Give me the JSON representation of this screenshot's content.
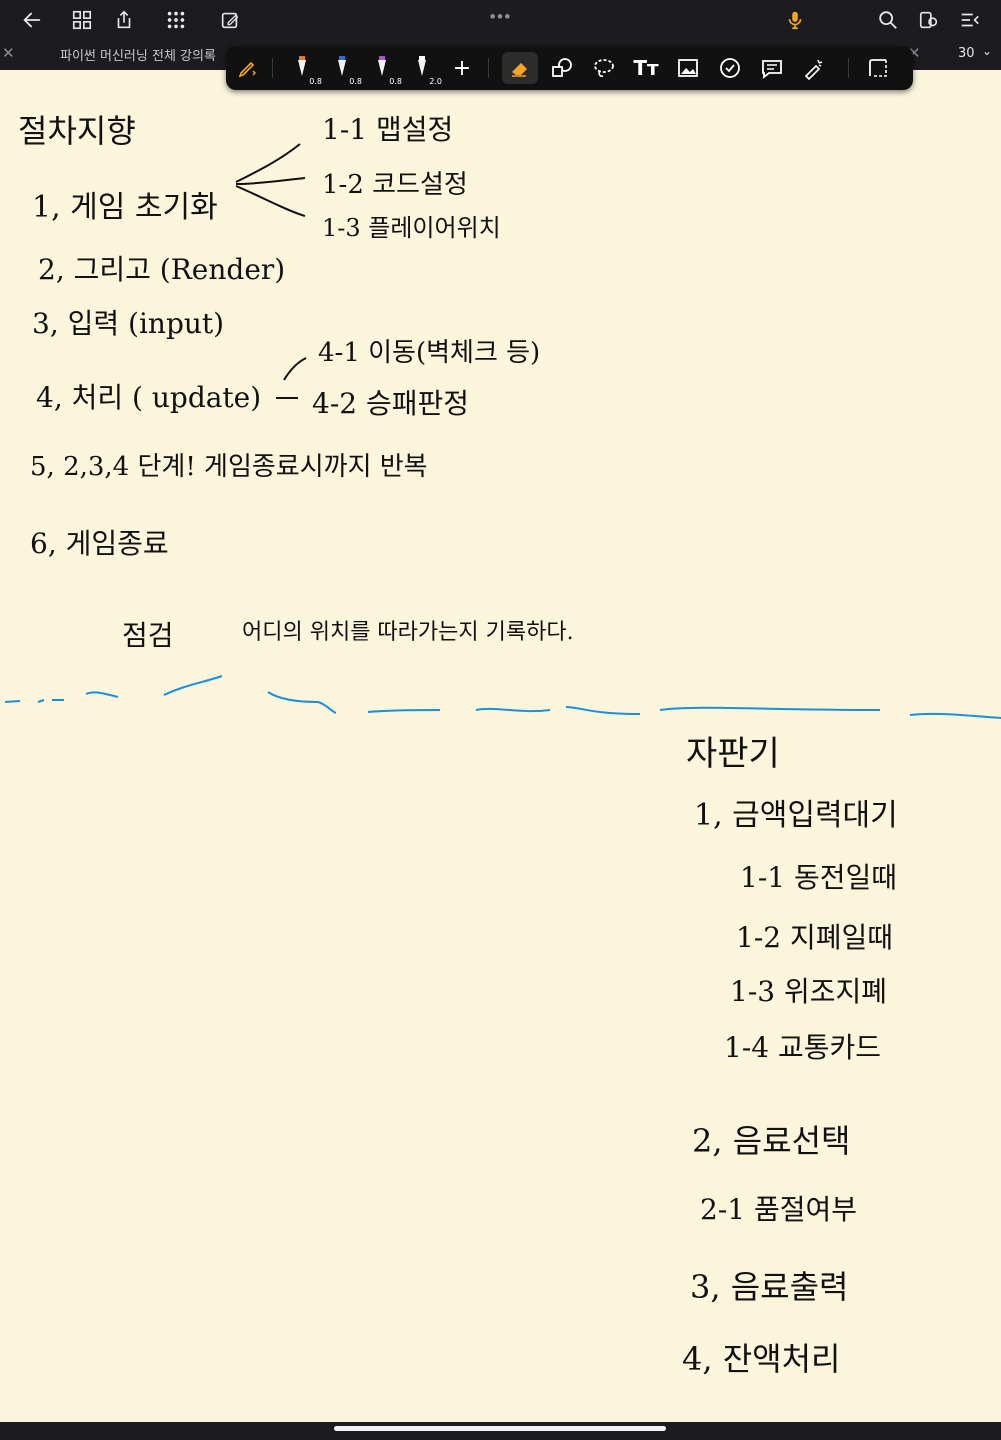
{
  "topbar": {
    "icons": [
      "back-arrow-icon",
      "grid-view-icon",
      "share-icon",
      "apps-icon",
      "edit-document-icon",
      "more-dots-icon",
      "microphone-icon",
      "search-icon",
      "settings-icon",
      "collapse-icon"
    ],
    "accent": "#f5a623"
  },
  "tab": {
    "title": "파이썬 머신러닝 전체 강의록",
    "page_number": "30"
  },
  "toolbar": {
    "pens": [
      {
        "size": "0.8",
        "color": "#e07b2b"
      },
      {
        "size": "0.8",
        "color": "#2f6fe0"
      },
      {
        "size": "0.8",
        "color": "#b14fd8"
      },
      {
        "size": "2.0",
        "color": "#ffffff"
      }
    ],
    "add": "+",
    "text_tool": "Tт"
  },
  "note": {
    "top": {
      "heading": "절차지향",
      "items": [
        "1, 게임 초기화",
        "2, 그리고 (Render)",
        "3, 입력 (input)",
        "4, 처리 ( update)",
        "5, 2,3,4 단계! 게임종료시까지 반복",
        "6, 게임종료"
      ],
      "sub1": [
        "1-1 맵설정",
        "1-2 코드설정",
        "1-3 플레이어위치"
      ],
      "sub4": [
        "4-1 이동(벽체크 등)",
        "4-2 승패판정"
      ],
      "footer_left": "점검",
      "footer_right": "어디의 위치를 따라가는지 기록하다."
    },
    "bottom": {
      "heading": "자판기",
      "items": [
        "1, 금액입력대기",
        "1-1 동전일때",
        "1-2 지폐일때",
        "1-3 위조지폐",
        "1-4 교통카드",
        "2, 음료선택",
        "2-1 품절여부",
        "3, 음료출력",
        "4, 잔액처리"
      ]
    },
    "divider_color": "#1a8fe0"
  }
}
